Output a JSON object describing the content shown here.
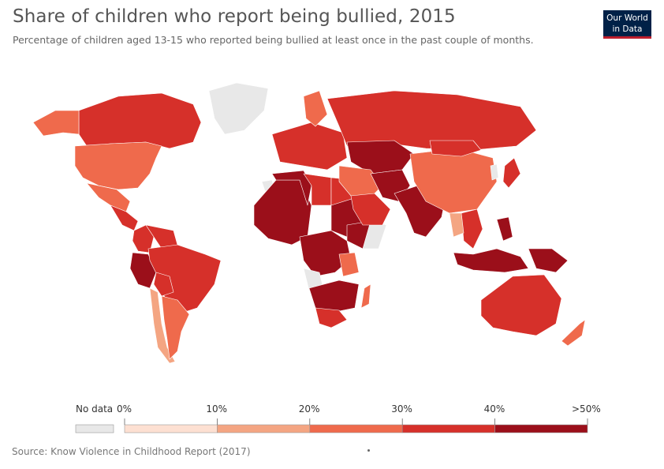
{
  "header": {
    "title": "Share of children who report being bullied, 2015",
    "subtitle": "Percentage of children aged 13-15 who reported being bullied at least once in the past couple of months."
  },
  "logo": {
    "line1": "Our World",
    "line2": "in Data",
    "bg_color": "#002147",
    "accent_color": "#be1e2d"
  },
  "map": {
    "type": "choropleth",
    "region_colors": {
      "no_data": "#e8e8e8",
      "0-10": "#fde0d2",
      "10-20": "#f4a582",
      "20-30": "#ef6a4c",
      "30-40": "#d6302a",
      "40-50": "#9b0f1a",
      ">50": "#67000d"
    },
    "regions": [
      {
        "name": "Canada",
        "bin": "30-40"
      },
      {
        "name": "United States",
        "bin": "20-30"
      },
      {
        "name": "Alaska",
        "bin": "20-30"
      },
      {
        "name": "Greenland",
        "bin": "no_data"
      },
      {
        "name": "Mexico",
        "bin": "20-30"
      },
      {
        "name": "Central America",
        "bin": "30-40"
      },
      {
        "name": "Colombia",
        "bin": "30-40"
      },
      {
        "name": "Venezuela",
        "bin": "30-40"
      },
      {
        "name": "Peru",
        "bin": "40-50"
      },
      {
        "name": "Brazil",
        "bin": "30-40"
      },
      {
        "name": "Bolivia",
        "bin": "30-40"
      },
      {
        "name": "Chile",
        "bin": "10-20"
      },
      {
        "name": "Argentina",
        "bin": "20-30"
      },
      {
        "name": "Western Sahara",
        "bin": "no_data"
      },
      {
        "name": "West Africa",
        "bin": "40-50"
      },
      {
        "name": "Algeria",
        "bin": "40-50"
      },
      {
        "name": "Libya",
        "bin": "30-40"
      },
      {
        "name": "Egypt",
        "bin": "30-40"
      },
      {
        "name": "Sudan",
        "bin": "40-50"
      },
      {
        "name": "Ethiopia",
        "bin": "40-50"
      },
      {
        "name": "Somalia",
        "bin": "no_data"
      },
      {
        "name": "Central Africa",
        "bin": "40-50"
      },
      {
        "name": "Tanzania",
        "bin": "20-30"
      },
      {
        "name": "Angola",
        "bin": "no_data"
      },
      {
        "name": "Southern Africa",
        "bin": "40-50"
      },
      {
        "name": "South Africa",
        "bin": "30-40"
      },
      {
        "name": "Madagascar",
        "bin": "20-30"
      },
      {
        "name": "Europe",
        "bin": "30-40"
      },
      {
        "name": "Scandinavia",
        "bin": "20-30"
      },
      {
        "name": "Russia",
        "bin": "30-40"
      },
      {
        "name": "Kazakhstan",
        "bin": "40-50"
      },
      {
        "name": "Middle East",
        "bin": "20-30"
      },
      {
        "name": "Arabia",
        "bin": "30-40"
      },
      {
        "name": "Afghanistan / Pakistan",
        "bin": "40-50"
      },
      {
        "name": "India",
        "bin": "40-50"
      },
      {
        "name": "China",
        "bin": "20-30"
      },
      {
        "name": "Mongolia",
        "bin": "30-40"
      },
      {
        "name": "Japan",
        "bin": "30-40"
      },
      {
        "name": "Korea",
        "bin": "no_data"
      },
      {
        "name": "Southeast Asia",
        "bin": "30-40"
      },
      {
        "name": "Myanmar",
        "bin": "10-20"
      },
      {
        "name": "Indonesia",
        "bin": "40-50"
      },
      {
        "name": "Philippines",
        "bin": "40-50"
      },
      {
        "name": "Papua New Guinea",
        "bin": "40-50"
      },
      {
        "name": "Australia",
        "bin": "30-40"
      },
      {
        "name": "New Zealand",
        "bin": "20-30"
      }
    ]
  },
  "legend": {
    "no_data_label": "No data",
    "ticks": [
      "0%",
      "10%",
      "20%",
      "30%",
      "40%",
      ">50%"
    ],
    "bins": [
      {
        "range": "0-10",
        "color": "#fde0d2"
      },
      {
        "range": "10-20",
        "color": "#f4a582"
      },
      {
        "range": "20-30",
        "color": "#ef6a4c"
      },
      {
        "range": "30-40",
        "color": "#d6302a"
      },
      {
        "range": "40-50",
        "color": "#9b0f1a"
      }
    ]
  },
  "footer": {
    "source": "Source: Know Violence in Childhood Report (2017)"
  }
}
